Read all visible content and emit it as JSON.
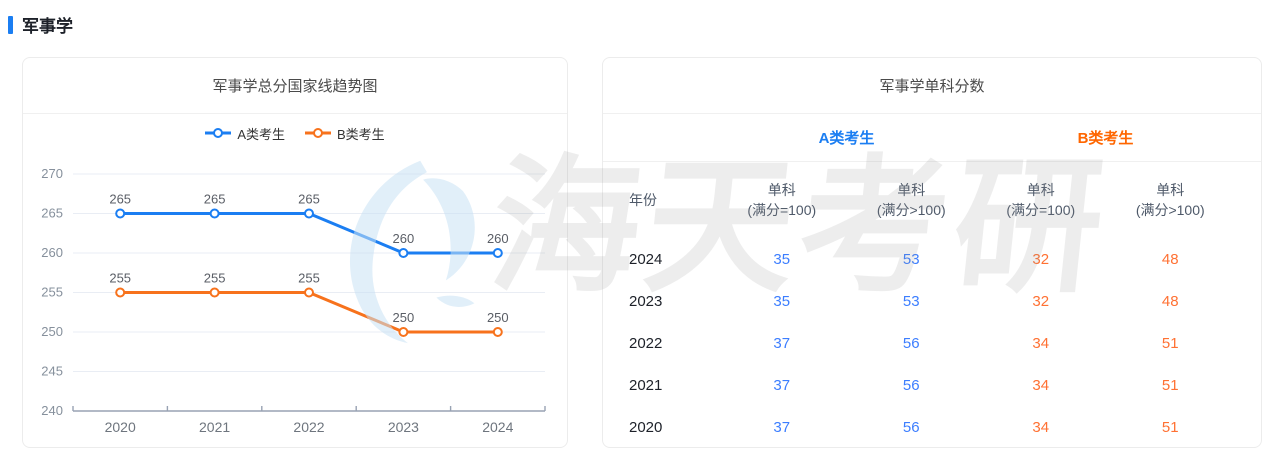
{
  "page": {
    "header_title": "军事学"
  },
  "watermark": {
    "text": "海天考研",
    "logo": "haitian-sail-logo",
    "logo_color": "#C9E2F5"
  },
  "chart_panel": {
    "title": "军事学总分国家线趋势图"
  },
  "chart_data": {
    "type": "line",
    "title": "军事学总分国家线趋势图",
    "categories": [
      "2020",
      "2021",
      "2022",
      "2023",
      "2024"
    ],
    "series": [
      {
        "name": "A类考生",
        "color": "#1B7EF2",
        "values": [
          265,
          265,
          265,
          260,
          260
        ]
      },
      {
        "name": "B类考生",
        "color": "#F7721C",
        "values": [
          255,
          255,
          255,
          250,
          250
        ]
      }
    ],
    "ylim": [
      240,
      270
    ],
    "ytick_step": 5,
    "grid": true,
    "legend_position": "top",
    "data_labels": true,
    "colors": {
      "grid_line": "#E9EDF4",
      "axis_line": "#98A2B3",
      "y_tick_label": "#86909C",
      "x_tick_label": "#6E757E",
      "data_label": "#5A5E66"
    }
  },
  "table_panel": {
    "title": "军事学单科分数",
    "group_headers": [
      {
        "label": "A类考生",
        "color": "#1B7EF2"
      },
      {
        "label": "B类考生",
        "color": "#FF6600"
      }
    ],
    "columns": [
      {
        "label": "年份",
        "sub": ""
      },
      {
        "label": "单科",
        "sub": "(满分=100)"
      },
      {
        "label": "单科",
        "sub": "(满分>100)"
      },
      {
        "label": "单科",
        "sub": "(满分=100)"
      },
      {
        "label": "单科",
        "sub": "(满分>100)"
      }
    ],
    "value_colors": [
      "#1D2129",
      "#3C7EFF",
      "#3C7EFF",
      "#FF7133",
      "#FF7133"
    ],
    "rows": [
      [
        "2024",
        "35",
        "53",
        "32",
        "48"
      ],
      [
        "2023",
        "35",
        "53",
        "32",
        "48"
      ],
      [
        "2022",
        "37",
        "56",
        "34",
        "51"
      ],
      [
        "2021",
        "37",
        "56",
        "34",
        "51"
      ],
      [
        "2020",
        "37",
        "56",
        "34",
        "51"
      ]
    ]
  }
}
